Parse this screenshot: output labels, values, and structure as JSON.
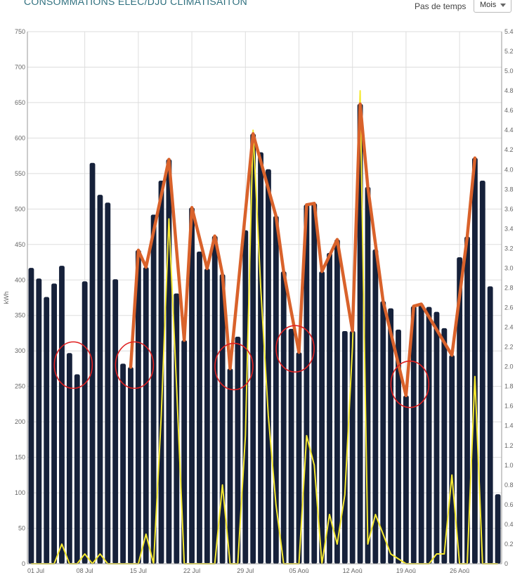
{
  "header": {
    "title": "CONSOMMATIONS ELEC/DJU CLIMATISAITON",
    "step_label": "Pas de temps",
    "step_value": "Mois"
  },
  "chart_data": {
    "type": "bar",
    "ylabel": "kWh",
    "ylim": [
      0,
      750
    ],
    "y2lim": [
      0,
      5.4
    ],
    "y_ticks": [
      0,
      50,
      100,
      150,
      200,
      250,
      300,
      350,
      400,
      450,
      500,
      550,
      600,
      650,
      700,
      750
    ],
    "y2_ticks": [
      "0",
      "0.2",
      "0.4",
      "0.6",
      "0.8",
      "1.0",
      "1.2",
      "1.4",
      "1.6",
      "1.8",
      "2.0",
      "2.2",
      "2.4",
      "2.6",
      "2.8",
      "3.0",
      "3.2",
      "3.4",
      "3.6",
      "3.8",
      "4.0",
      "4.2",
      "4.4",
      "4.6",
      "4.8",
      "5.0",
      "5.2",
      "5.4"
    ],
    "x_ticks": [
      {
        "label": "01 Jul",
        "index": 0
      },
      {
        "label": "08 Jul",
        "index": 7
      },
      {
        "label": "15 Jul",
        "index": 14
      },
      {
        "label": "22 Jul",
        "index": 21
      },
      {
        "label": "29 Jul",
        "index": 28
      },
      {
        "label": "05 Aoû",
        "index": 35
      },
      {
        "label": "12 Aoû",
        "index": 42
      },
      {
        "label": "19 Aoû",
        "index": 49
      },
      {
        "label": "26 Aoû",
        "index": 56
      }
    ],
    "grid": true,
    "colors": {
      "bars": "#16213a",
      "dju": "#f5e830",
      "trend": "#d9622b",
      "circles": "#e02020",
      "grid": "#dddddd"
    },
    "series": [
      {
        "type": "bar",
        "axis": "left",
        "values": [
          417,
          402,
          376,
          395,
          420,
          297,
          267,
          398,
          565,
          520,
          509,
          401,
          282,
          277,
          442,
          418,
          492,
          540,
          570,
          381,
          315,
          502,
          440,
          416,
          462,
          408,
          275,
          320,
          470,
          606,
          580,
          556,
          490,
          412,
          331,
          298,
          506,
          508,
          412,
          438,
          457,
          328,
          328,
          648,
          531,
          443,
          370,
          360,
          330,
          237,
          363,
          366,
          362,
          355,
          332,
          294,
          432,
          461,
          572,
          540,
          391,
          98
        ]
      },
      {
        "type": "line",
        "axis": "right",
        "values": [
          0,
          0,
          0,
          0,
          0.2,
          0,
          0,
          0.1,
          0,
          0.1,
          0,
          0,
          0,
          0,
          0,
          0.3,
          0,
          1.5,
          3.5,
          1.8,
          0,
          0,
          0,
          0,
          0,
          0.8,
          0,
          0,
          1.3,
          4.4,
          2.8,
          1.5,
          0.6,
          0,
          0,
          0,
          1.3,
          1.0,
          0,
          0.5,
          0.2,
          0.7,
          2.2,
          4.8,
          0.2,
          0.5,
          0.3,
          0.1,
          0.05,
          0,
          0,
          0,
          0,
          0.1,
          0.1,
          0.9,
          0,
          0,
          1.9,
          0,
          0,
          0
        ]
      },
      {
        "type": "line",
        "axis": "left",
        "points": [
          [
            13,
            277
          ],
          [
            14,
            442
          ],
          [
            15,
            418
          ],
          [
            18,
            570
          ],
          [
            20,
            315
          ],
          [
            21,
            502
          ],
          [
            23,
            416
          ],
          [
            24,
            462
          ],
          [
            25,
            408
          ],
          [
            26,
            275
          ],
          [
            29,
            606
          ],
          [
            32,
            490
          ],
          [
            33,
            412
          ],
          [
            35,
            298
          ],
          [
            36,
            506
          ],
          [
            37,
            508
          ],
          [
            38,
            412
          ],
          [
            40,
            457
          ],
          [
            42,
            328
          ],
          [
            43,
            648
          ],
          [
            44,
            531
          ],
          [
            46,
            370
          ],
          [
            49,
            237
          ],
          [
            50,
            363
          ],
          [
            51,
            366
          ],
          [
            55,
            294
          ],
          [
            57,
            461
          ],
          [
            58,
            572
          ]
        ]
      }
    ],
    "highlights": [
      {
        "index": 5.5,
        "value": 280
      },
      {
        "index": 13.5,
        "value": 280
      },
      {
        "index": 26.5,
        "value": 278
      },
      {
        "index": 34.5,
        "value": 303
      },
      {
        "index": 49.5,
        "value": 253
      }
    ]
  }
}
